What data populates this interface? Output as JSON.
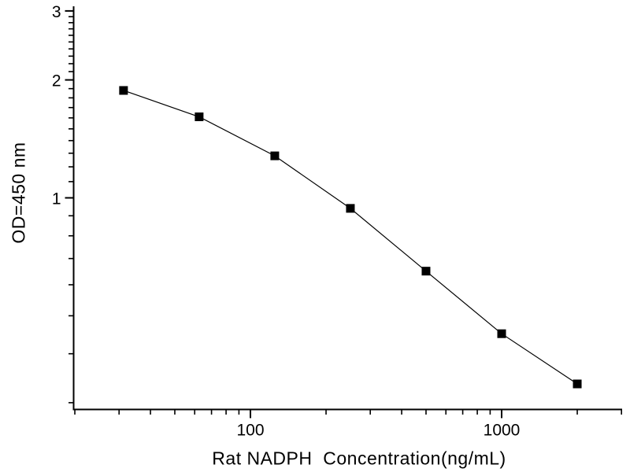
{
  "chart_data": {
    "type": "scatter",
    "subtype": "scatter-with-line",
    "title": "",
    "xlabel": "Rat NADPH  Concentration(ng/mL)",
    "ylabel": "OD=450 nm",
    "x": [
      31.25,
      62.5,
      125,
      250,
      500,
      1000,
      2000
    ],
    "y": [
      1.88,
      1.61,
      1.28,
      0.94,
      0.65,
      0.45,
      0.335
    ],
    "x_scale": "log",
    "y_scale": "log",
    "xlim": [
      20,
      3000
    ],
    "ylim": [
      0.29,
      3.05
    ],
    "x_major_ticks": [
      100,
      1000
    ],
    "x_major_tick_labels": [
      "100",
      "1000"
    ],
    "x_minor_ticks": [
      20,
      30,
      40,
      50,
      60,
      70,
      80,
      90,
      200,
      300,
      400,
      500,
      600,
      700,
      800,
      900,
      2000,
      3000
    ],
    "y_major_ticks": [
      1,
      2,
      3
    ],
    "y_major_tick_labels": [
      "1",
      "2",
      "3"
    ],
    "y_minor_ticks": [
      0.3,
      0.4,
      0.5,
      0.6,
      0.7,
      0.8,
      0.9,
      1.1,
      1.2,
      1.3,
      1.4,
      1.5,
      1.6,
      1.7,
      1.8,
      1.9,
      2.1,
      2.2,
      2.3,
      2.4,
      2.5,
      2.6,
      2.7,
      2.8,
      2.9
    ],
    "grid": false,
    "legend": "none",
    "marker": "filled-square",
    "marker_color": "#000000",
    "line_color": "#000000",
    "axis_color": "#000000",
    "background_color": "#ffffff"
  }
}
